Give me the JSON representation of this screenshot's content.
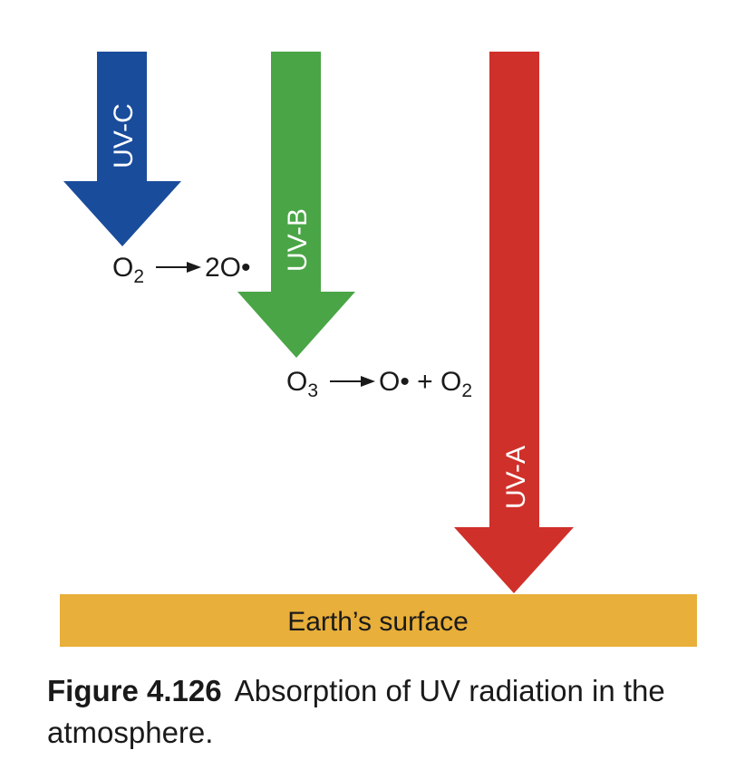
{
  "arrows": [
    {
      "label": "UV-C",
      "color": "#1a4c9c"
    },
    {
      "label": "UV-B",
      "color": "#4aa546"
    },
    {
      "label": "UV-A",
      "color": "#d0302a"
    }
  ],
  "reactions": {
    "r1": {
      "reactant": "O",
      "reactant_sub": "2",
      "product": "2O•"
    },
    "r2": {
      "reactant": "O",
      "reactant_sub": "3",
      "product_a": "O• + O",
      "product_sub": "2"
    }
  },
  "surface": {
    "label": "Earth’s surface",
    "color": "#e8af3a"
  },
  "caption": {
    "figure_number": "Figure 4.126",
    "text": "Absorption of UV radiation in the atmosphere."
  }
}
